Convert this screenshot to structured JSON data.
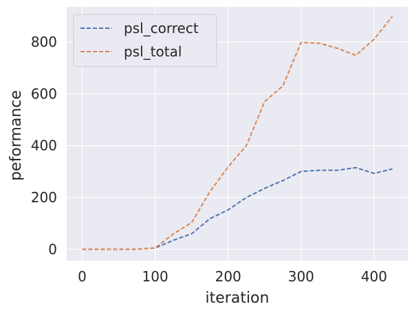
{
  "chart_data": {
    "type": "line",
    "title": "",
    "xlabel": "iteration",
    "ylabel": "peformance",
    "xlim": [
      -21.25,
      446.25
    ],
    "ylim": [
      -44,
      935
    ],
    "xticks": [
      0,
      100,
      200,
      300,
      400
    ],
    "yticks": [
      0,
      200,
      400,
      600,
      800
    ],
    "grid": true,
    "legend_position": "top-left",
    "series": [
      {
        "name": "psl_correct",
        "color": "#4c72b0",
        "line_style": "dashed",
        "x": [
          0,
          25,
          50,
          75,
          100,
          125,
          150,
          175,
          200,
          225,
          250,
          275,
          300,
          325,
          350,
          375,
          400,
          425
        ],
        "y": [
          0,
          0,
          0,
          0,
          5,
          35,
          60,
          118,
          152,
          200,
          235,
          265,
          300,
          305,
          305,
          315,
          293,
          310
        ]
      },
      {
        "name": "psl_total",
        "color": "#dd8452",
        "line_style": "dashed",
        "x": [
          0,
          25,
          50,
          75,
          100,
          125,
          150,
          175,
          200,
          225,
          250,
          275,
          300,
          325,
          350,
          375,
          400,
          425
        ],
        "y": [
          0,
          0,
          0,
          0,
          5,
          60,
          103,
          222,
          318,
          400,
          570,
          630,
          798,
          795,
          775,
          748,
          810,
          898
        ]
      }
    ]
  }
}
